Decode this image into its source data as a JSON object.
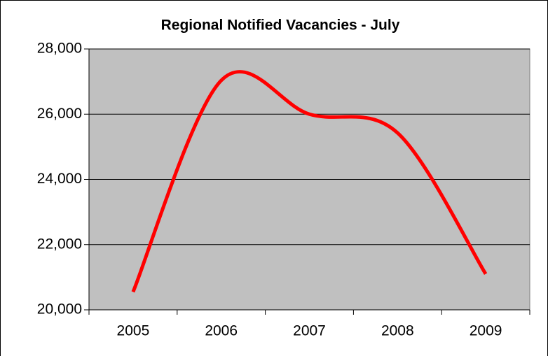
{
  "chart_data": {
    "type": "line",
    "title": "Regional Notified Vacancies - July",
    "categories": [
      "2005",
      "2006",
      "2007",
      "2008",
      "2009"
    ],
    "series": [
      {
        "name": "Notified Vacancies",
        "color": "#ff0000",
        "values": [
          20550,
          27035,
          26000,
          25426,
          21100
        ]
      }
    ],
    "ylim": [
      20000,
      28000
    ],
    "yticks": [
      {
        "value": 20000,
        "label": "20,000"
      },
      {
        "value": 22000,
        "label": "22,000"
      },
      {
        "value": 24000,
        "label": "24,000"
      },
      {
        "value": 26000,
        "label": "26,000"
      },
      {
        "value": 28000,
        "label": "28,000"
      }
    ],
    "grid": true,
    "smooth": true
  }
}
